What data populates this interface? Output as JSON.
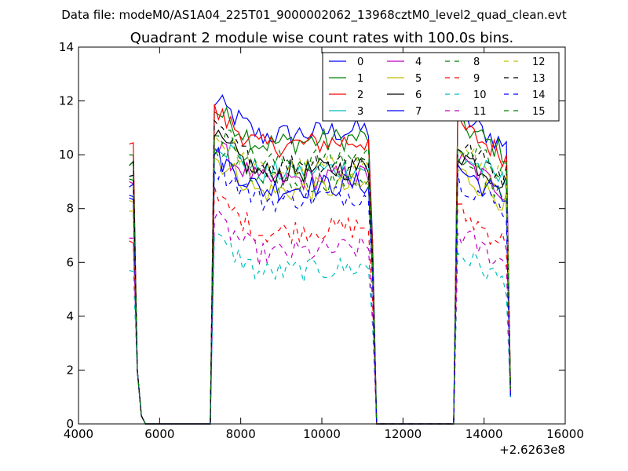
{
  "chart_data": {
    "type": "line",
    "suptitle": "Data file: modeM0/AS1A04_225T01_9000002062_13968cztM0_level2_quad_clean.evt",
    "title": "Quadrant 2 module wise count rates with 100.0s bins.",
    "xlabel": "",
    "ylabel": "",
    "x_offset_label": "+2.6263e8",
    "xlim": [
      4000,
      16000
    ],
    "ylim": [
      0,
      14
    ],
    "xticks": [
      4000,
      6000,
      8000,
      10000,
      12000,
      14000,
      16000
    ],
    "yticks": [
      0,
      2,
      4,
      6,
      8,
      10,
      12,
      14
    ],
    "xtick_labels": [
      "4000",
      "6000",
      "8000",
      "10000",
      "12000",
      "14000",
      "16000"
    ],
    "ytick_labels": [
      "0",
      "2",
      "4",
      "6",
      "8",
      "10",
      "12",
      "14"
    ],
    "grid": false,
    "legend_position": "top-right",
    "legend_columns": 4,
    "segments": [
      {
        "start": 5250,
        "end": 5650,
        "step": 100
      },
      {
        "start": 7250,
        "end": 11350,
        "step": 100
      },
      {
        "start": 13250,
        "end": 14650,
        "step": 100
      }
    ],
    "series": [
      {
        "name": "0",
        "color": "#0000ff",
        "dash": "solid",
        "level": 11.0,
        "start": 8.8,
        "end": 1.0
      },
      {
        "name": "1",
        "color": "#008000",
        "dash": "solid",
        "level": 10.7,
        "start": 10.0,
        "end": 1.3
      },
      {
        "name": "2",
        "color": "#ff0000",
        "dash": "solid",
        "level": 10.6,
        "start": 10.4,
        "end": 1.5
      },
      {
        "name": "3",
        "color": "#00bfbf",
        "dash": "solid",
        "level": 9.6,
        "start": 9.2,
        "end": 1.2
      },
      {
        "name": "4",
        "color": "#bf00bf",
        "dash": "solid",
        "level": 9.3,
        "start": 9.0,
        "end": 1.2
      },
      {
        "name": "5",
        "color": "#bfbf00",
        "dash": "solid",
        "level": 8.9,
        "start": 7.9,
        "end": 1.1
      },
      {
        "name": "6",
        "color": "#000000",
        "dash": "solid",
        "level": 9.6,
        "start": 9.6,
        "end": 1.3
      },
      {
        "name": "7",
        "color": "#0000ff",
        "dash": "solid",
        "level": 9.0,
        "start": 8.5,
        "end": 1.0
      },
      {
        "name": "8",
        "color": "#008000",
        "dash": "dashed",
        "level": 9.2,
        "start": 9.1,
        "end": 1.4
      },
      {
        "name": "9",
        "color": "#ff0000",
        "dash": "dashed",
        "level": 7.4,
        "start": 6.8,
        "end": 1.1
      },
      {
        "name": "10",
        "color": "#00bfbf",
        "dash": "dashed",
        "level": 5.9,
        "start": 5.7,
        "end": 1.0
      },
      {
        "name": "11",
        "color": "#bf00bf",
        "dash": "dashed",
        "level": 6.6,
        "start": 6.9,
        "end": 1.1
      },
      {
        "name": "12",
        "color": "#bfbf00",
        "dash": "dashed",
        "level": 9.7,
        "start": 8.3,
        "end": 1.2
      },
      {
        "name": "13",
        "color": "#000000",
        "dash": "dashed",
        "level": 9.9,
        "start": 9.2,
        "end": 1.3
      },
      {
        "name": "14",
        "color": "#0000ff",
        "dash": "dashed",
        "level": 8.6,
        "start": 8.4,
        "end": 1.0
      },
      {
        "name": "15",
        "color": "#008000",
        "dash": "dashed",
        "level": 10.0,
        "start": 9.6,
        "end": 1.3
      }
    ]
  }
}
